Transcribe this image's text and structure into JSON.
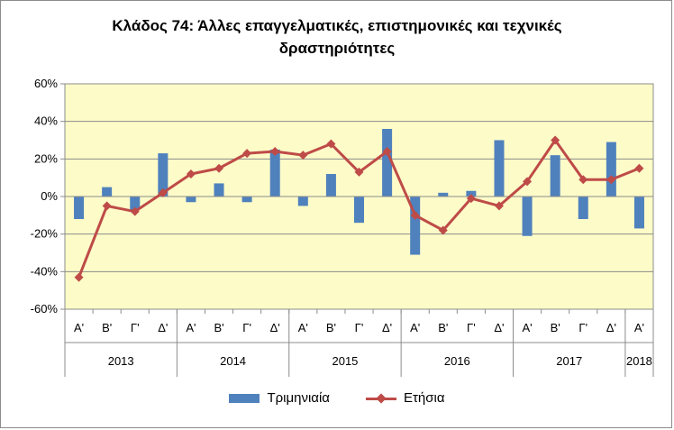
{
  "chart_data": {
    "type": "bar+line",
    "title_line1": "Κλάδος 74: Άλλες επαγγελματικές, επιστημονικές και τεχνικές",
    "title_line2": "δραστηριότητες",
    "y_ticks": [
      "60%",
      "40%",
      "20%",
      "0%",
      "-20%",
      "-40%",
      "-60%"
    ],
    "ylim": [
      -60,
      60
    ],
    "quarters": [
      "Α'",
      "Β'",
      "Γ'",
      "Δ'",
      "Α'",
      "Β'",
      "Γ'",
      "Δ'",
      "Α'",
      "Β'",
      "Γ'",
      "Δ'",
      "Α'",
      "Β'",
      "Γ'",
      "Δ'",
      "Α'",
      "Β'",
      "Γ'",
      "Δ'",
      "Α'"
    ],
    "years": [
      {
        "label": "2013",
        "count": 4
      },
      {
        "label": "2014",
        "count": 4
      },
      {
        "label": "2015",
        "count": 4
      },
      {
        "label": "2016",
        "count": 4
      },
      {
        "label": "2017",
        "count": 4
      },
      {
        "label": "2018",
        "count": 1
      }
    ],
    "series": [
      {
        "name": "Τριμηνιαία",
        "kind": "bar",
        "color": "#4f81bd",
        "values": [
          -12,
          5,
          -7,
          23,
          -3,
          7,
          -3,
          25,
          -5,
          12,
          -14,
          36,
          -31,
          2,
          3,
          30,
          -21,
          22,
          -12,
          29,
          -17
        ]
      },
      {
        "name": "Ετήσια",
        "kind": "line",
        "color": "#be4b48",
        "values": [
          -43,
          -5,
          -8,
          2,
          12,
          15,
          23,
          24,
          22,
          28,
          13,
          24,
          -10,
          -18,
          -1,
          -5,
          8,
          30,
          9,
          9,
          15
        ]
      }
    ],
    "plot_background": "#fdfbc8",
    "grid": true,
    "legend_position": "bottom"
  }
}
